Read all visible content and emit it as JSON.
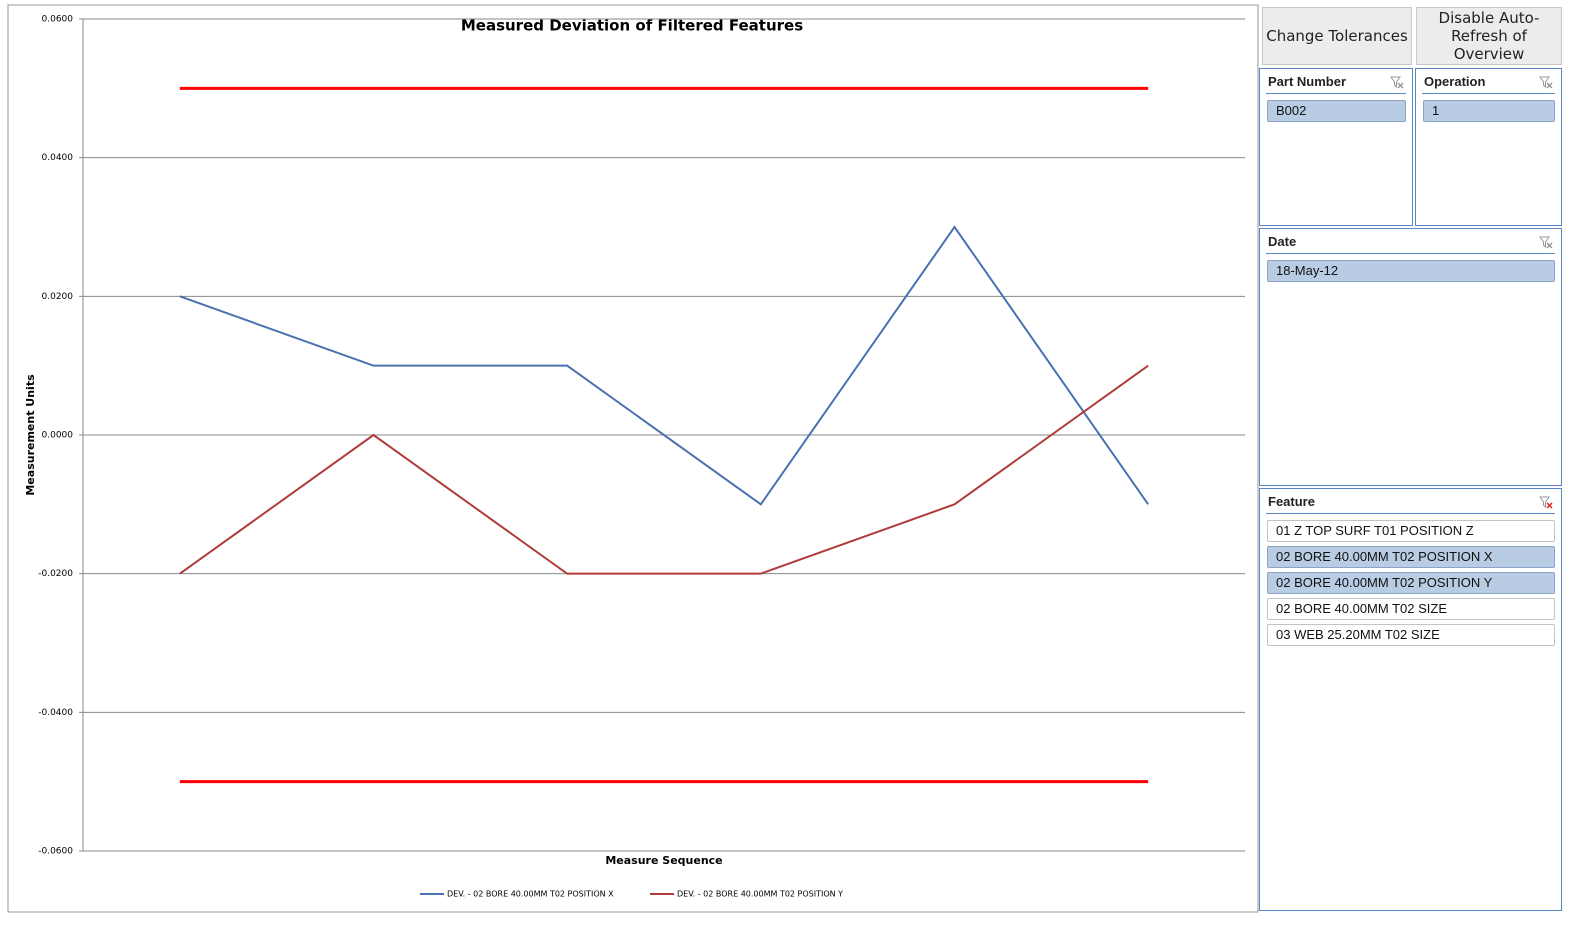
{
  "chart_data": {
    "type": "line",
    "title": "Measured Deviation of Filtered Features",
    "x_label": "Measure Sequence",
    "y_label": "Measurement Units",
    "categories": [
      null,
      null,
      null,
      null,
      null,
      null
    ],
    "series": [
      {
        "name": "DEV. - 02 BORE 40.00MM T02 POSITION X",
        "color": "#4a72b0",
        "values": [
          0.02,
          0.01,
          0.01,
          -0.01,
          0.03,
          -0.01
        ]
      },
      {
        "name": "DEV. - 02 BORE 40.00MM T02 POSITION Y",
        "color": "#b03c3a",
        "values": [
          -0.02,
          0,
          -0.02,
          -0.02,
          -0.01,
          0.01
        ]
      }
    ],
    "reference_lines": [
      {
        "value": 0.05,
        "color": "#ff0000"
      },
      {
        "value": -0.05,
        "color": "#ff0000"
      }
    ],
    "ylim": [
      -0.06,
      0.06
    ],
    "yticks": [
      {
        "value": -0.06,
        "label": "-0.0600"
      },
      {
        "value": -0.04,
        "label": "-0.0400"
      },
      {
        "value": -0.02,
        "label": "-0.0200"
      },
      {
        "value": 0,
        "label": "0.0000"
      },
      {
        "value": 0.02,
        "label": "0.0200"
      },
      {
        "value": 0.04,
        "label": "0.0400"
      },
      {
        "value": 0.06,
        "label": "0.0600"
      }
    ],
    "grid": true,
    "legend": "bottom"
  },
  "buttons": [
    "Change Tolerances",
    "Disable Auto-Refresh of Overview"
  ],
  "slicers": [
    {
      "title": "Part Number",
      "items": [
        {
          "label": "B002",
          "selected": true
        }
      ]
    },
    {
      "title": "Operation",
      "items": [
        {
          "label": "1",
          "selected": true
        }
      ]
    },
    {
      "title": "Date",
      "items": [
        {
          "label": "18-May-12",
          "selected": true
        }
      ]
    },
    {
      "title": "Feature",
      "items": [
        {
          "label": "01 Z TOP SURF T01 POSITION Z",
          "selected": false
        },
        {
          "label": "02 BORE 40.00MM T02 POSITION X",
          "selected": true
        },
        {
          "label": "02 BORE 40.00MM T02 POSITION Y",
          "selected": true
        },
        {
          "label": "02 BORE 40.00MM T02 SIZE",
          "selected": false
        },
        {
          "label": "03 WEB 25.20MM T02 SIZE",
          "selected": false
        }
      ]
    }
  ]
}
